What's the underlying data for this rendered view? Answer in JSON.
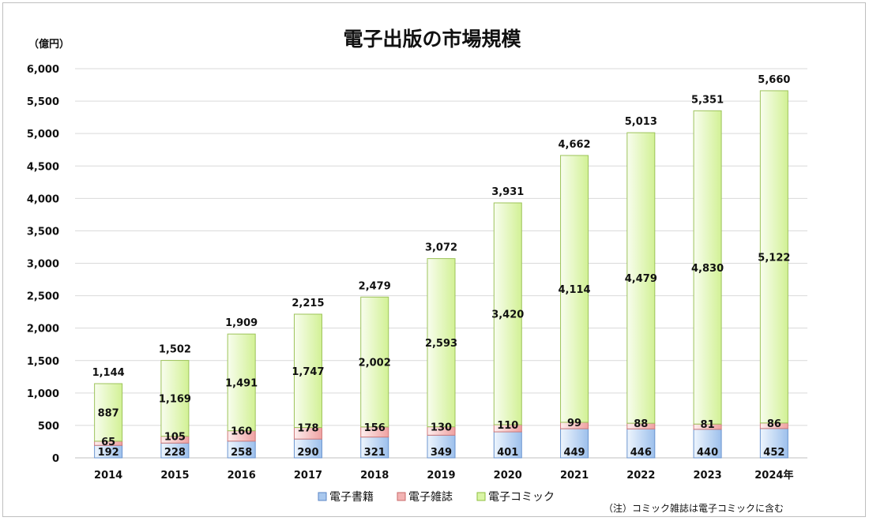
{
  "chart_data": {
    "type": "bar",
    "stacked": true,
    "title": "電子出版の市場規模",
    "unit_label": "（億円）",
    "note": "（注）コミック雑誌は電子コミックに含む",
    "categories": [
      "2014",
      "2015",
      "2016",
      "2017",
      "2018",
      "2019",
      "2020",
      "2021",
      "2022",
      "2023",
      "2024年"
    ],
    "ylim": [
      0,
      6000
    ],
    "yticks": [
      0,
      500,
      1000,
      1500,
      2000,
      2500,
      3000,
      3500,
      4000,
      4500,
      5000,
      5500,
      6000
    ],
    "ytick_labels": [
      "0",
      "500",
      "1,000",
      "1,500",
      "2,000",
      "2,500",
      "3,000",
      "3,500",
      "4,000",
      "4,500",
      "5,000",
      "5,500",
      "6,000"
    ],
    "grid": true,
    "legend_position": "bottom",
    "series": [
      {
        "name": "電子書籍",
        "color": "#a9c8ee",
        "values": [
          192,
          228,
          258,
          290,
          321,
          349,
          401,
          449,
          446,
          440,
          452
        ],
        "labels": [
          "192",
          "228",
          "258",
          "290",
          "321",
          "349",
          "401",
          "449",
          "446",
          "440",
          "452"
        ]
      },
      {
        "name": "電子雑誌",
        "color": "#f2b3b3",
        "values": [
          65,
          105,
          160,
          178,
          156,
          130,
          110,
          99,
          88,
          81,
          86
        ],
        "labels": [
          "65",
          "105",
          "160",
          "178",
          "156",
          "130",
          "110",
          "99",
          "88",
          "81",
          "86"
        ]
      },
      {
        "name": "電子コミック",
        "color": "#d9f5a6",
        "values": [
          887,
          1169,
          1491,
          1747,
          2002,
          2593,
          3420,
          4114,
          4479,
          4830,
          5122
        ],
        "labels": [
          "887",
          "1,169",
          "1,491",
          "1,747",
          "2,002",
          "2,593",
          "3,420",
          "4,114",
          "4,479",
          "4,830",
          "5,122"
        ]
      }
    ],
    "totals": [
      1144,
      1502,
      1909,
      2215,
      2479,
      3072,
      3931,
      4662,
      5013,
      5351,
      5660
    ],
    "total_labels": [
      "1,144",
      "1,502",
      "1,909",
      "2,215",
      "2,479",
      "3,072",
      "3,931",
      "4,662",
      "5,013",
      "5,351",
      "5,660"
    ]
  }
}
